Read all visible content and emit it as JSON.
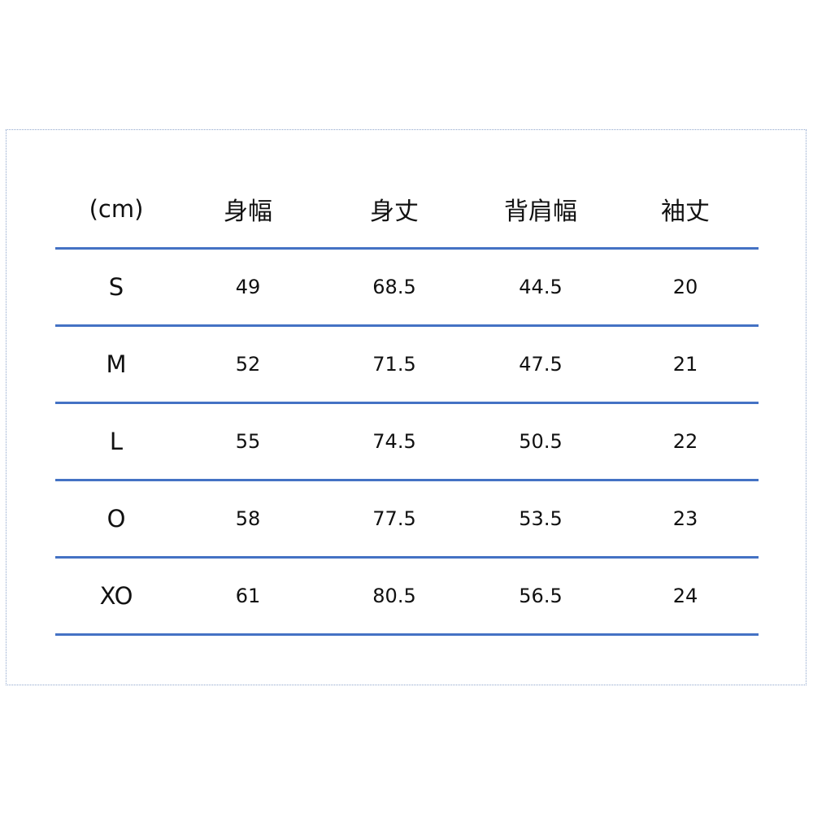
{
  "table": {
    "headers": [
      "(cm)",
      "身幅",
      "身丈",
      "背肩幅",
      "袖丈"
    ],
    "rows": [
      [
        "S",
        "49",
        "68.5",
        "44.5",
        "20"
      ],
      [
        "M",
        "52",
        "71.5",
        "47.5",
        "21"
      ],
      [
        "L",
        "55",
        "74.5",
        "50.5",
        "22"
      ],
      [
        "O",
        "58",
        "77.5",
        "53.5",
        "23"
      ],
      [
        "XO",
        "61",
        "80.5",
        "56.5",
        "24"
      ]
    ],
    "line_color": "#4472c4"
  }
}
